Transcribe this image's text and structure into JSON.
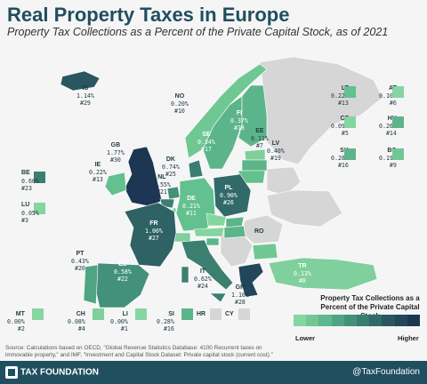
{
  "title": "Real Property Taxes in Europe",
  "subtitle": "Property Tax Collections as a Percent of the Private Capital Stock, as of 2021",
  "map_countries": [
    {
      "code": "IS",
      "value": "1.14%",
      "rank": "#29"
    },
    {
      "code": "NO",
      "value": "0.20%",
      "rank": "#10"
    },
    {
      "code": "FI",
      "value": "0.37%",
      "rank": "#18"
    },
    {
      "code": "SE",
      "value": "0.34%",
      "rank": "#17"
    },
    {
      "code": "EE",
      "value": "0.11%",
      "rank": "#7"
    },
    {
      "code": "LV",
      "value": "0.40%",
      "rank": "#19"
    },
    {
      "code": "GB",
      "value": "1.77%",
      "rank": "#30"
    },
    {
      "code": "DK",
      "value": "0.74%",
      "rank": "#25"
    },
    {
      "code": "IE",
      "value": "0.22%",
      "rank": "#13"
    },
    {
      "code": "NL",
      "value": "0.55%",
      "rank": "#21"
    },
    {
      "code": "BE",
      "value": "0.60%",
      "rank": "#23"
    },
    {
      "code": "LU",
      "value": "0.05%",
      "rank": "#3"
    },
    {
      "code": "DE",
      "value": "0.21%",
      "rank": "#11"
    },
    {
      "code": "PL",
      "value": "0.90%",
      "rank": "#26"
    },
    {
      "code": "FR",
      "value": "1.00%",
      "rank": "#27"
    },
    {
      "code": "RO",
      "value": "",
      "rank": ""
    },
    {
      "code": "PT",
      "value": "0.43%",
      "rank": "#20"
    },
    {
      "code": "ES",
      "value": "0.58%",
      "rank": "#22"
    },
    {
      "code": "IT",
      "value": "0.62%",
      "rank": "#24"
    },
    {
      "code": "GR",
      "value": "1.10%",
      "rank": "#28"
    },
    {
      "code": "TR",
      "value": "0.13%",
      "rank": "#8"
    }
  ],
  "side_countries": [
    {
      "code": "LT",
      "value": "0.22%",
      "rank": "#13",
      "color": "#63c08f"
    },
    {
      "code": "AT",
      "value": "0.10%",
      "rank": "#6",
      "color": "#84d5a0"
    },
    {
      "code": "CZ",
      "value": "0.09%",
      "rank": "#5",
      "color": "#84d5a0"
    },
    {
      "code": "HU",
      "value": "0.26%",
      "rank": "#14",
      "color": "#5cb58a"
    },
    {
      "code": "SK",
      "value": "0.28%",
      "rank": "#16",
      "color": "#5cb58a"
    },
    {
      "code": "BG",
      "value": "0.19%",
      "rank": "#9",
      "color": "#6fc894"
    },
    {
      "code": "BE",
      "value": "0.60%",
      "rank": "#23",
      "color": "#3b7f70"
    },
    {
      "code": "LU",
      "value": "0.05%",
      "rank": "#3",
      "color": "#84d5a0"
    }
  ],
  "small_countries": [
    {
      "code": "MT",
      "value": "0.00%",
      "rank": "#2",
      "color": "#86d6a1"
    },
    {
      "code": "CH",
      "value": "0.08%",
      "rank": "#4",
      "color": "#7fd09c"
    },
    {
      "code": "LI",
      "value": "0.00%",
      "rank": "#1",
      "color": "#86d6a1"
    },
    {
      "code": "SI",
      "value": "0.28%",
      "rank": "#16",
      "color": "#5cb58a"
    },
    {
      "code": "HR",
      "value": "",
      "rank": "",
      "color": "#d6d6d6"
    },
    {
      "code": "CY",
      "value": "",
      "rank": "",
      "color": "#d6d6d6"
    }
  ],
  "legend": {
    "title_line1": "Property Tax Collections as a",
    "title_line2": "Percent of the Private Capital Stock",
    "low": "Lower",
    "high": "Higher",
    "colors": [
      "#86d6a1",
      "#72c795",
      "#5fb78b",
      "#4fa583",
      "#44917b",
      "#3a7d72",
      "#326a69",
      "#2a575f",
      "#22465a",
      "#1c3653"
    ]
  },
  "source_line1": "Source: Calculations based on OECD, \"Global Revenue Statistics Database: 4100 Recurrent taxes on",
  "source_line2": "immovable property,\" and IMF, \"Investment and Capital Stock Dataset: Private capital stock (current cost).\"",
  "footer": {
    "logo": "TAX FOUNDATION",
    "handle": "@TaxFoundation"
  }
}
